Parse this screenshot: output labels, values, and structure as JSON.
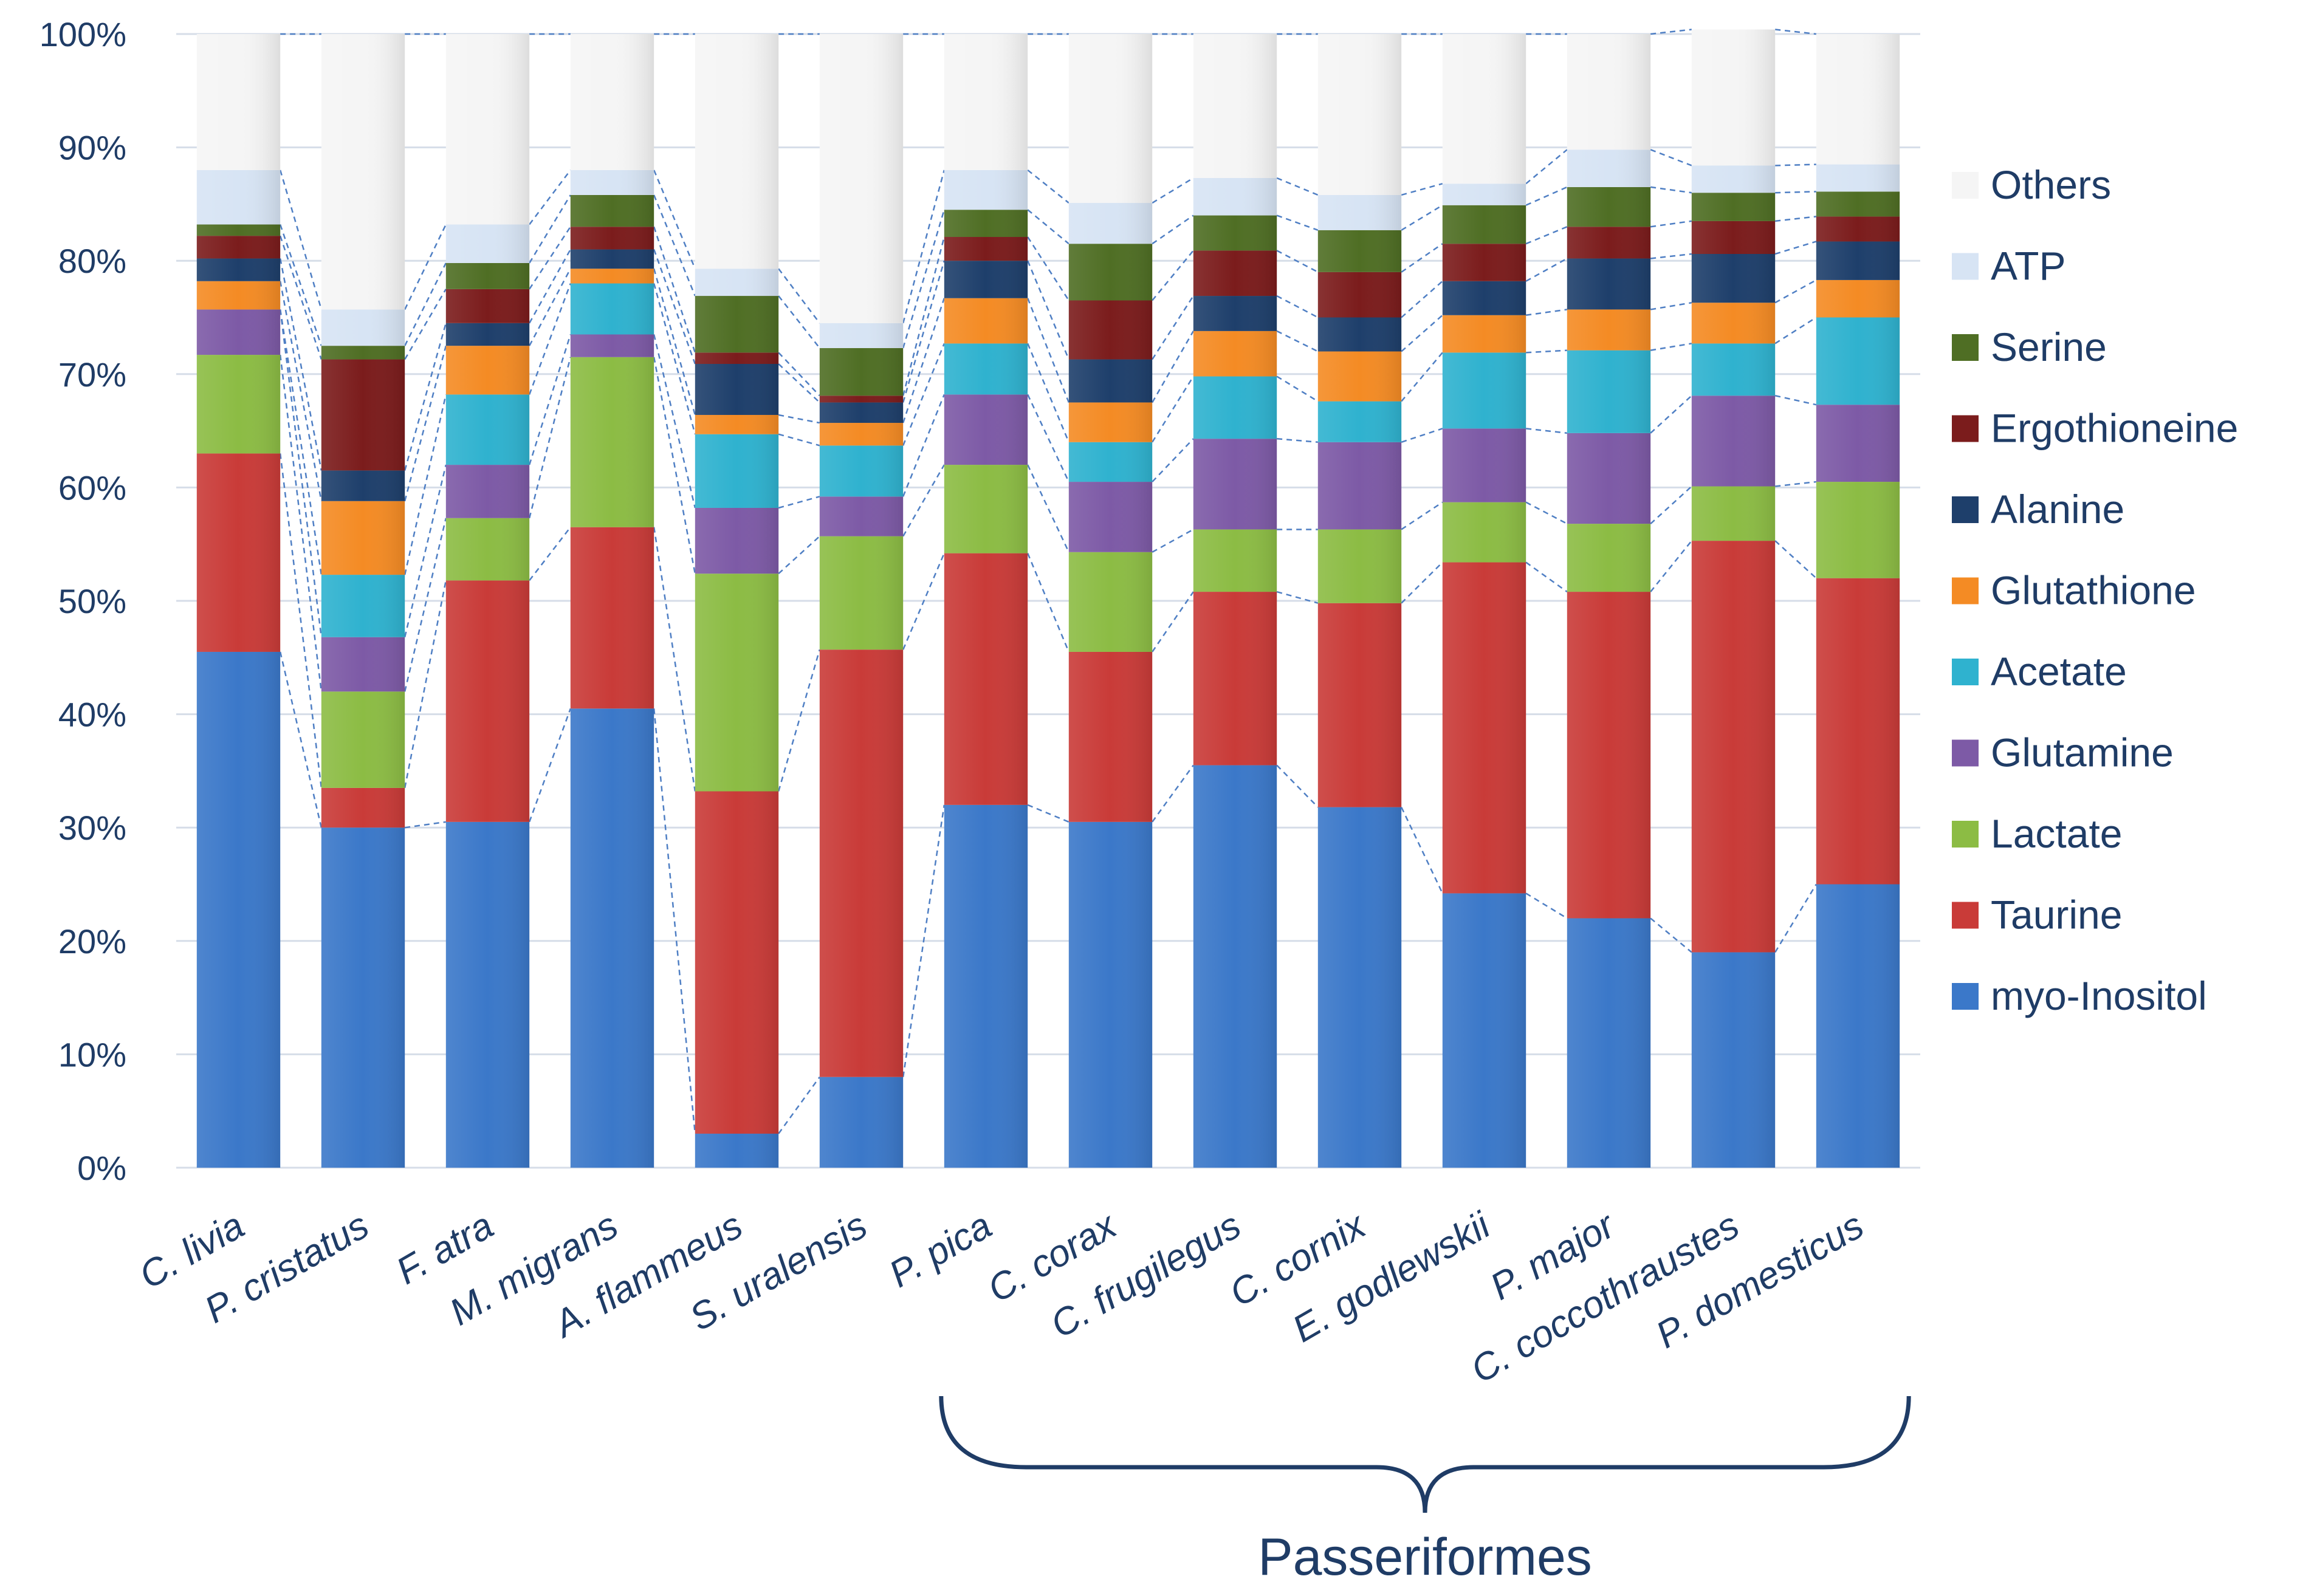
{
  "chart_data": {
    "type": "bar",
    "stacked": true,
    "title": "",
    "xlabel": "",
    "ylabel": "",
    "ylim": [
      0,
      100
    ],
    "yticks": [
      "0%",
      "10%",
      "20%",
      "30%",
      "40%",
      "50%",
      "60%",
      "70%",
      "80%",
      "90%",
      "100%"
    ],
    "grid": true,
    "legend_position": "right",
    "categories": [
      "C. livia",
      "P. cristatus",
      "F. atra",
      "M. migrans",
      "A. flammeus",
      "S. uralensis",
      "P. pica",
      "C. corax",
      "C. frugilegus",
      "C. cornix",
      "E. godlewskii",
      "P. major",
      "C. coccothraustes",
      "P. domesticus"
    ],
    "series": [
      {
        "name": "myo-Inositol",
        "color": "#3b78c9",
        "values": [
          45.5,
          30.0,
          30.5,
          40.5,
          3.0,
          8.0,
          32.0,
          30.5,
          35.5,
          31.8,
          24.2,
          22.0,
          19.0,
          25.0
        ]
      },
      {
        "name": "Taurine",
        "color": "#c93b38",
        "values": [
          17.5,
          3.5,
          21.3,
          16.0,
          30.2,
          37.7,
          22.2,
          15.0,
          15.3,
          18.0,
          29.2,
          28.8,
          36.3,
          27.0
        ]
      },
      {
        "name": "Lactate",
        "color": "#8cbc44",
        "values": [
          8.7,
          8.5,
          5.5,
          15.0,
          19.2,
          10.0,
          7.8,
          8.8,
          5.5,
          6.5,
          5.3,
          6.0,
          4.8,
          8.5
        ]
      },
      {
        "name": "Glutamine",
        "color": "#7d5aa6",
        "values": [
          4.0,
          4.8,
          4.7,
          2.0,
          5.8,
          3.5,
          6.2,
          6.2,
          8.0,
          7.7,
          6.5,
          8.0,
          8.0,
          6.8
        ]
      },
      {
        "name": "Acetate",
        "color": "#2fb2cf",
        "values": [
          0.0,
          5.5,
          6.2,
          4.5,
          6.5,
          4.5,
          4.5,
          3.5,
          5.5,
          3.6,
          6.7,
          7.3,
          4.6,
          7.7
        ]
      },
      {
        "name": "Glutathione",
        "color": "#f48b24",
        "values": [
          2.5,
          6.5,
          4.3,
          1.3,
          1.7,
          2.0,
          4.0,
          3.5,
          4.0,
          4.4,
          3.3,
          3.6,
          3.6,
          3.3
        ]
      },
      {
        "name": "Alanine",
        "color": "#1e3f6b",
        "values": [
          2.0,
          2.7,
          2.0,
          1.7,
          4.5,
          1.8,
          3.3,
          3.8,
          3.1,
          3.0,
          3.0,
          4.5,
          4.3,
          3.4
        ]
      },
      {
        "name": "Ergothioneine",
        "color": "#7b1c1c",
        "values": [
          2.0,
          9.8,
          3.0,
          2.0,
          1.0,
          0.6,
          2.1,
          5.2,
          4.0,
          4.0,
          3.3,
          2.8,
          2.9,
          2.2
        ]
      },
      {
        "name": "Serine",
        "color": "#4f6e24",
        "values": [
          1.0,
          1.2,
          2.3,
          2.8,
          5.0,
          4.2,
          2.4,
          5.0,
          3.1,
          3.7,
          3.4,
          3.5,
          2.5,
          2.2
        ]
      },
      {
        "name": "ATP",
        "color": "#d7e4f4",
        "values": [
          4.8,
          3.2,
          3.4,
          2.2,
          2.4,
          2.2,
          3.5,
          3.6,
          3.3,
          3.1,
          1.9,
          3.3,
          2.4,
          2.4
        ]
      },
      {
        "name": "Others",
        "color": "#f5f5f5",
        "values": [
          12.0,
          24.3,
          16.8,
          12.0,
          20.7,
          25.5,
          12.0,
          14.9,
          12.7,
          14.2,
          13.2,
          10.2,
          12.0,
          11.5
        ]
      }
    ],
    "annotations": [
      {
        "text": "Passeriformes",
        "spans_categories": [
          "P. pica",
          "P. domesticus"
        ]
      }
    ]
  }
}
